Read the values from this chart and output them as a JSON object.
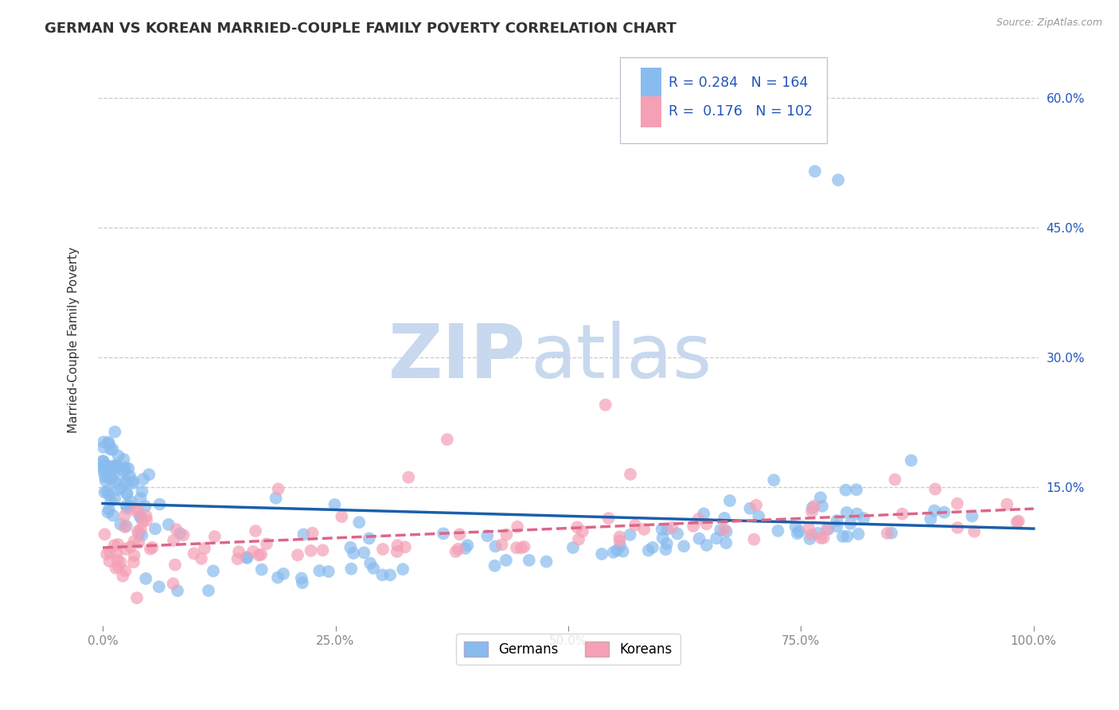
{
  "title": "GERMAN VS KOREAN MARRIED-COUPLE FAMILY POVERTY CORRELATION CHART",
  "source": "Source: ZipAtlas.com",
  "xlabel": "",
  "ylabel": "Married-Couple Family Poverty",
  "xlim": [
    0.0,
    1.0
  ],
  "ylim": [
    0.0,
    0.65
  ],
  "xticks": [
    0.0,
    0.25,
    0.5,
    0.75,
    1.0
  ],
  "xtick_labels": [
    "0.0%",
    "25.0%",
    "50.0%",
    "75.0%",
    "100.0%"
  ],
  "ytick_labels": [
    "15.0%",
    "30.0%",
    "45.0%",
    "60.0%"
  ],
  "ytick_values": [
    0.15,
    0.3,
    0.45,
    0.6
  ],
  "german_R": 0.284,
  "german_N": 164,
  "korean_R": 0.176,
  "korean_N": 102,
  "german_color": "#88BBEE",
  "korean_color": "#F5A0B5",
  "german_line_color": "#1A5FAA",
  "korean_line_color": "#DD6688",
  "watermark_zip": "ZIP",
  "watermark_atlas": "atlas",
  "watermark_color": "#C8D8EE",
  "background_color": "#FFFFFF",
  "grid_color": "#CCCCCC",
  "legend_text_color": "#2255BB",
  "title_color": "#333333",
  "source_color": "#999999",
  "title_fontsize": 13,
  "axis_label_fontsize": 11,
  "tick_fontsize": 11,
  "seed": 7
}
